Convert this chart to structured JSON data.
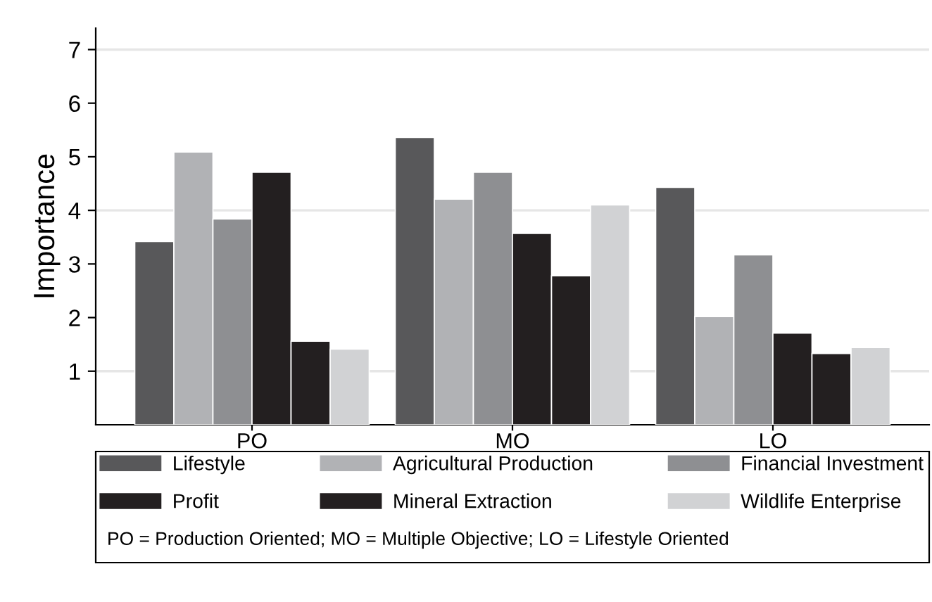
{
  "chart_data": {
    "type": "bar",
    "ylabel": "Importance",
    "categories": [
      "PO",
      "MO",
      "LO"
    ],
    "series": [
      {
        "name": "Lifestyle",
        "color": "#58585a",
        "values": [
          3.42,
          5.36,
          4.43
        ]
      },
      {
        "name": "Agricultural Production",
        "color": "#b1b2b5",
        "values": [
          5.09,
          4.21,
          2.02
        ]
      },
      {
        "name": "Financial Investment",
        "color": "#8e8f92",
        "values": [
          3.84,
          4.71,
          3.17
        ]
      },
      {
        "name": "Profit",
        "color": "#231f20",
        "values": [
          4.71,
          3.57,
          1.71
        ]
      },
      {
        "name": "Mineral Extraction",
        "color": "#231f20",
        "values": [
          1.56,
          2.78,
          1.33
        ]
      },
      {
        "name": "Wildlife Enterprise",
        "color": "#d1d2d4",
        "values": [
          1.41,
          4.1,
          1.44
        ]
      }
    ],
    "ylim": [
      0,
      7.4
    ],
    "yticks": [
      1,
      2,
      3,
      4,
      5,
      6,
      7
    ],
    "ref_lines": [
      {
        "axis": "y",
        "value": 1,
        "color": "#e6e6e6"
      },
      {
        "axis": "y",
        "value": 4,
        "color": "#e6e6e6"
      },
      {
        "axis": "y",
        "value": 7,
        "color": "#e6e6e6"
      }
    ],
    "legend": "bottom",
    "annotations": [
      "PO = Production Oriented; MO = Multiple Objective; LO = Lifestyle Oriented"
    ]
  }
}
